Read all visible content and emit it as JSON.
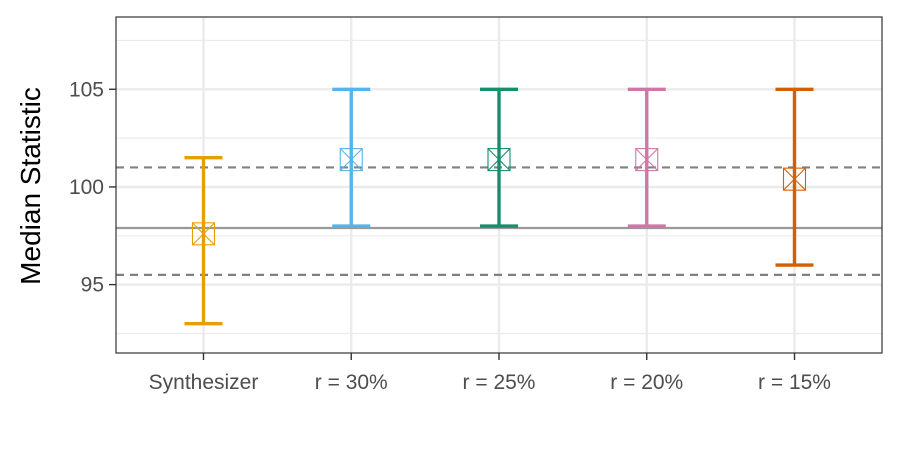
{
  "chart_data": {
    "type": "errorbar",
    "title": "",
    "xlabel": "",
    "ylabel": "Median Statistic",
    "ylim": [
      91.5,
      108.7
    ],
    "yticks": [
      95,
      100,
      105
    ],
    "grid": true,
    "categories": [
      "Synthesizer",
      "r = 30%",
      "r = 25%",
      "r = 20%",
      "r = 15%"
    ],
    "series": [
      {
        "category": "Synthesizer",
        "low": 93.0,
        "high": 101.5,
        "median": 97.6,
        "color": "#E69F00"
      },
      {
        "category": "r = 30%",
        "low": 98.0,
        "high": 105.0,
        "median": 101.4,
        "color": "#56B4E9"
      },
      {
        "category": "r = 25%",
        "low": 98.0,
        "high": 105.0,
        "median": 101.4,
        "color": "#168E6B"
      },
      {
        "category": "r = 20%",
        "low": 98.0,
        "high": 105.0,
        "median": 101.4,
        "color": "#CC79A7"
      },
      {
        "category": "r = 15%",
        "low": 96.0,
        "high": 105.0,
        "median": 100.4,
        "color": "#D55E00"
      }
    ],
    "reference_lines": [
      {
        "y": 97.9,
        "style": "solid",
        "color": "#999999"
      },
      {
        "y": 101.0,
        "style": "dashed",
        "color": "#808080"
      },
      {
        "y": 95.5,
        "style": "dashed",
        "color": "#808080"
      }
    ]
  }
}
